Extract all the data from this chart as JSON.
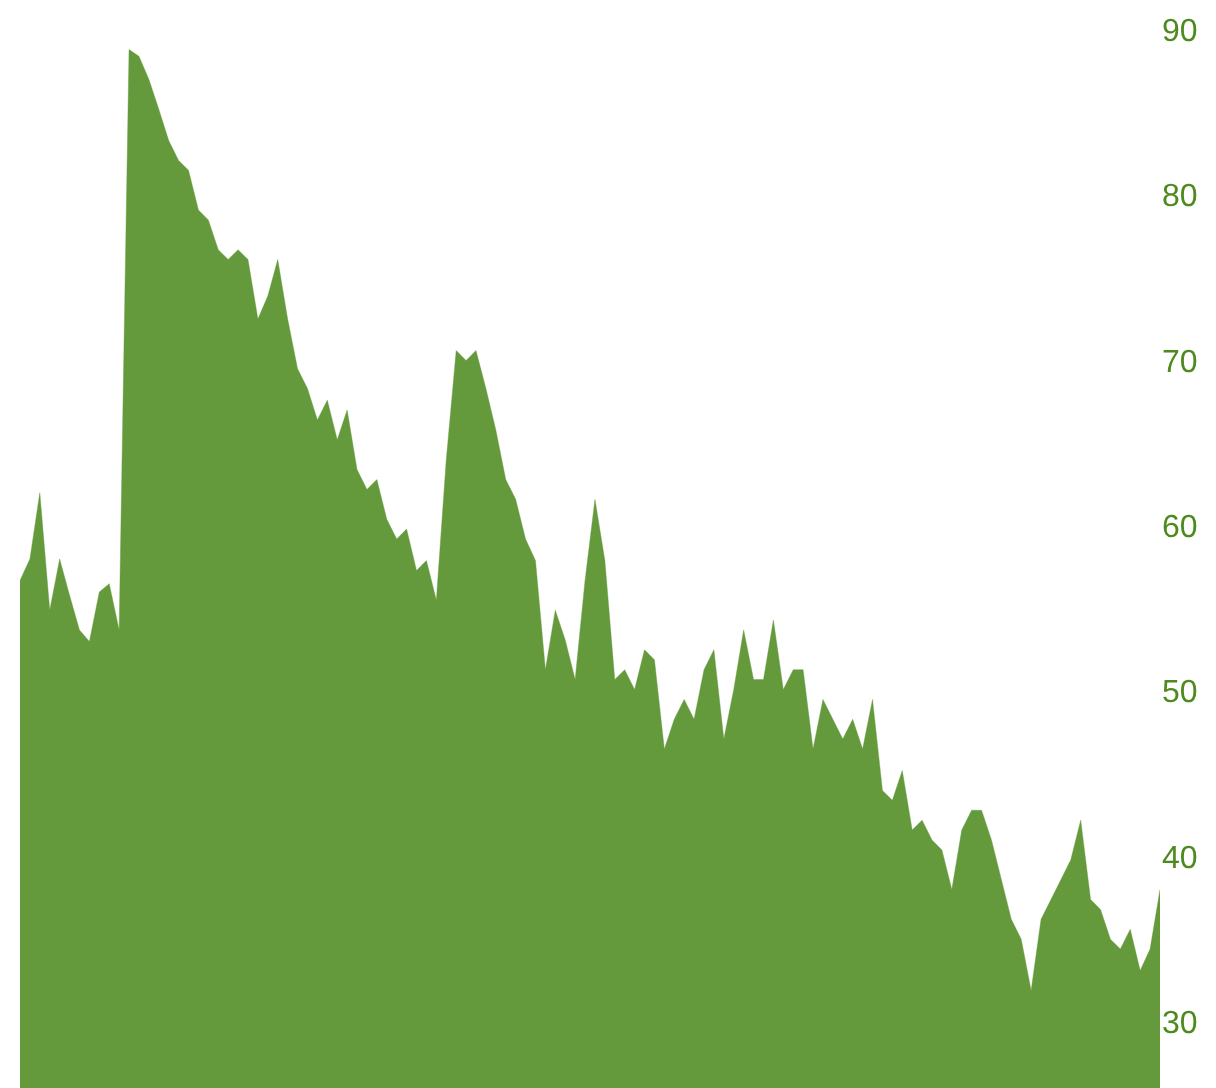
{
  "chart_data": {
    "type": "area",
    "color": "#649a3c",
    "ylim": [
      26,
      91.8
    ],
    "yticks": [
      30,
      40,
      50,
      60,
      70,
      80,
      90
    ],
    "tick_labels": "y",
    "categories": [
      null,
      null,
      null,
      null,
      null,
      null,
      null,
      null,
      null,
      null,
      null,
      null,
      null,
      null,
      null,
      null,
      null,
      null,
      null,
      null,
      null,
      null,
      null,
      null,
      null,
      null,
      null,
      null,
      null,
      null,
      null,
      null,
      null,
      null,
      null,
      null,
      null,
      null,
      null,
      null,
      null,
      null,
      null,
      null,
      null,
      null,
      null,
      null,
      null,
      null,
      null,
      null,
      null,
      null,
      null,
      null,
      null,
      null,
      null,
      null,
      null,
      null,
      null,
      null,
      null,
      null,
      null,
      null,
      null,
      null,
      null,
      null,
      null,
      null,
      null,
      null,
      null,
      null,
      null,
      null,
      null,
      null,
      null,
      null,
      null,
      null,
      null,
      null,
      null,
      null,
      null,
      null,
      null,
      null,
      null,
      null,
      null,
      null,
      null,
      null,
      null,
      null,
      null,
      null,
      null,
      null,
      null,
      null,
      null,
      null,
      null,
      null,
      null,
      null,
      null,
      null
    ],
    "values": [
      56.7,
      58,
      62,
      54.9,
      58,
      55.8,
      53.7,
      53,
      56,
      56.5,
      53.7,
      88.8,
      88.4,
      87.0,
      85.2,
      83.3,
      82.1,
      81.5,
      79.1,
      78.5,
      76.7,
      76.1,
      76.7,
      76.1,
      72.5,
      73.9,
      76.1,
      72.5,
      69.5,
      68.3,
      66.4,
      67.6,
      65.2,
      67.0,
      63.4,
      62.2,
      62.8,
      60.4,
      59.2,
      59.8,
      57.3,
      57.9,
      55.5,
      64.0,
      70.6,
      70.0,
      70.6,
      68.3,
      65.8,
      62.8,
      61.6,
      59.2,
      57.9,
      51.3,
      54.9,
      53.1,
      50.7,
      56.7,
      61.6,
      57.9,
      50.7,
      51.3,
      50.1,
      52.5,
      51.9,
      46.5,
      48.3,
      49.5,
      48.3,
      51.3,
      52.5,
      47.1,
      50.1,
      53.7,
      50.7,
      50.7,
      54.3,
      50.1,
      51.3,
      51.3,
      46.5,
      49.5,
      48.3,
      47.1,
      48.3,
      46.5,
      49.5,
      44.0,
      43.4,
      45.2,
      41.6,
      42.2,
      41.0,
      40.4,
      38.0,
      41.6,
      42.8,
      42.8,
      41.0,
      38.6,
      36.2,
      35.0,
      31.9,
      36.2,
      37.4,
      38.6,
      39.8,
      42.2,
      37.4,
      36.8,
      35.0,
      34.4,
      35.6,
      33.1,
      34.4,
      38.0
    ]
  }
}
